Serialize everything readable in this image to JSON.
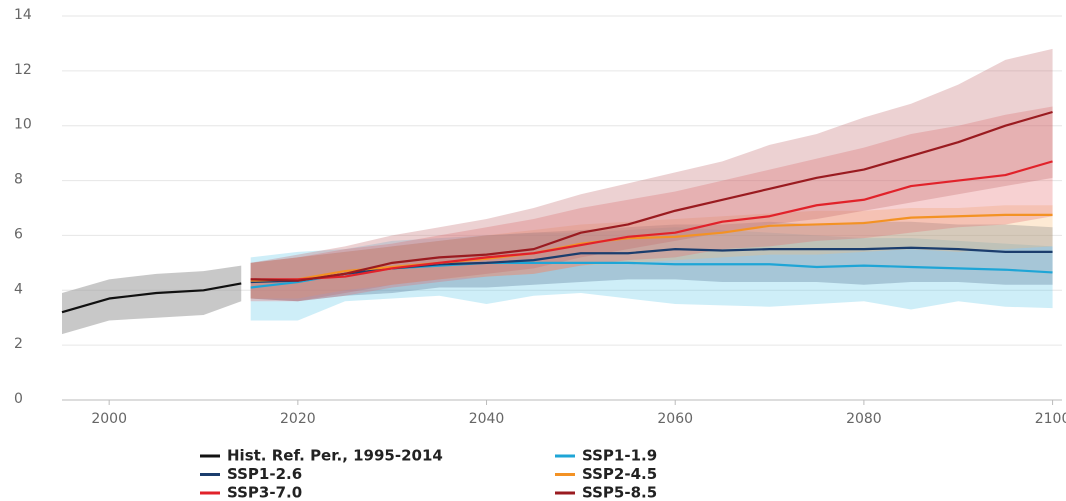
{
  "chart_data": {
    "type": "line",
    "xlim": [
      1995,
      2101
    ],
    "xticks": [
      2000,
      2020,
      2040,
      2060,
      2080,
      2100
    ],
    "ylim": [
      0,
      14
    ],
    "yticks": [
      0,
      2,
      4,
      6,
      8,
      10,
      12,
      14
    ],
    "grid": true,
    "series": [
      {
        "name": "Hist. Ref. Per., 1995-2014",
        "color": "#111111",
        "band_color": "#9a9a9a",
        "x": [
          1995,
          2000,
          2005,
          2010,
          2014
        ],
        "values": [
          3.2,
          3.7,
          3.9,
          4.0,
          4.25
        ],
        "lower": [
          2.4,
          2.9,
          3.0,
          3.1,
          3.6
        ],
        "upper": [
          3.9,
          4.4,
          4.6,
          4.7,
          4.9
        ]
      },
      {
        "name": "SSP1-1.9",
        "color": "#1ea5d6",
        "band_color": "#5cc6e8",
        "x": [
          2015,
          2020,
          2025,
          2030,
          2035,
          2040,
          2045,
          2050,
          2055,
          2060,
          2065,
          2070,
          2075,
          2080,
          2085,
          2090,
          2095,
          2100
        ],
        "values": [
          4.1,
          4.3,
          4.6,
          4.8,
          4.9,
          5.0,
          5.0,
          5.0,
          5.0,
          4.95,
          4.95,
          4.95,
          4.85,
          4.9,
          4.85,
          4.8,
          4.75,
          4.65
        ],
        "lower": [
          2.9,
          2.9,
          3.6,
          3.7,
          3.8,
          3.5,
          3.8,
          3.9,
          3.7,
          3.5,
          3.45,
          3.4,
          3.5,
          3.6,
          3.3,
          3.6,
          3.4,
          3.35
        ],
        "upper": [
          5.2,
          5.4,
          5.5,
          5.8,
          5.9,
          6.0,
          6.1,
          6.1,
          6.2,
          6.3,
          6.2,
          6.1,
          6.0,
          5.9,
          5.9,
          5.8,
          5.7,
          5.6
        ]
      },
      {
        "name": "SSP1-2.6",
        "color": "#1b3d6d",
        "band_color": "#4a6a8a",
        "x": [
          2015,
          2020,
          2025,
          2030,
          2035,
          2040,
          2045,
          2050,
          2055,
          2060,
          2065,
          2070,
          2075,
          2080,
          2085,
          2090,
          2095,
          2100
        ],
        "values": [
          4.3,
          4.35,
          4.6,
          4.8,
          4.95,
          5.0,
          5.1,
          5.35,
          5.35,
          5.5,
          5.45,
          5.5,
          5.5,
          5.5,
          5.55,
          5.5,
          5.4,
          5.4
        ],
        "lower": [
          3.7,
          3.6,
          3.8,
          3.9,
          4.1,
          4.1,
          4.2,
          4.3,
          4.4,
          4.4,
          4.3,
          4.3,
          4.3,
          4.2,
          4.3,
          4.3,
          4.2,
          4.2
        ],
        "upper": [
          5.0,
          5.2,
          5.4,
          5.6,
          5.8,
          6.0,
          6.1,
          6.2,
          6.3,
          6.4,
          6.4,
          6.5,
          6.4,
          6.5,
          6.5,
          6.4,
          6.4,
          6.3
        ]
      },
      {
        "name": "SSP2-4.5",
        "color": "#f39224",
        "band_color": "#f9b872",
        "x": [
          2015,
          2020,
          2025,
          2030,
          2035,
          2040,
          2045,
          2050,
          2055,
          2060,
          2065,
          2070,
          2075,
          2080,
          2085,
          2090,
          2095,
          2100
        ],
        "values": [
          4.35,
          4.4,
          4.7,
          4.85,
          5.0,
          5.15,
          5.35,
          5.7,
          5.9,
          5.95,
          6.1,
          6.35,
          6.4,
          6.45,
          6.65,
          6.7,
          6.75,
          6.75
        ],
        "lower": [
          3.7,
          3.7,
          4.0,
          4.2,
          4.4,
          4.5,
          4.6,
          4.9,
          5.0,
          5.1,
          5.2,
          5.3,
          5.3,
          5.4,
          5.5,
          5.4,
          5.5,
          5.6
        ],
        "upper": [
          5.0,
          5.2,
          5.4,
          5.6,
          5.8,
          6.0,
          6.2,
          6.4,
          6.5,
          6.6,
          6.7,
          6.8,
          6.9,
          6.9,
          7.0,
          7.0,
          7.1,
          7.1
        ]
      },
      {
        "name": "SSP3-7.0",
        "color": "#e1222a",
        "band_color": "#e5666a",
        "x": [
          2015,
          2020,
          2025,
          2030,
          2035,
          2040,
          2045,
          2050,
          2055,
          2060,
          2065,
          2070,
          2075,
          2080,
          2085,
          2090,
          2095,
          2100
        ],
        "values": [
          4.4,
          4.4,
          4.5,
          4.8,
          5.0,
          5.2,
          5.35,
          5.65,
          5.95,
          6.1,
          6.5,
          6.7,
          7.1,
          7.3,
          7.8,
          8.0,
          8.2,
          8.7
        ],
        "lower": [
          3.6,
          3.6,
          3.8,
          4.1,
          4.3,
          4.5,
          4.6,
          4.9,
          5.1,
          5.2,
          5.5,
          5.6,
          5.8,
          5.9,
          6.1,
          6.3,
          6.4,
          6.7
        ],
        "upper": [
          5.0,
          5.2,
          5.5,
          5.7,
          6.0,
          6.3,
          6.6,
          7.0,
          7.3,
          7.6,
          8.0,
          8.4,
          8.8,
          9.2,
          9.7,
          10.0,
          10.4,
          10.7
        ]
      },
      {
        "name": "SSP5-8.5",
        "color": "#9a1b20",
        "band_color": "#c0666a",
        "x": [
          2015,
          2020,
          2025,
          2030,
          2035,
          2040,
          2045,
          2050,
          2055,
          2060,
          2065,
          2070,
          2075,
          2080,
          2085,
          2090,
          2095,
          2100
        ],
        "values": [
          4.4,
          4.35,
          4.6,
          5.0,
          5.2,
          5.3,
          5.5,
          6.1,
          6.4,
          6.9,
          7.3,
          7.7,
          8.1,
          8.4,
          8.9,
          9.4,
          10.0,
          10.5
        ],
        "lower": [
          3.7,
          3.6,
          3.9,
          4.2,
          4.4,
          4.6,
          4.8,
          5.2,
          5.5,
          5.8,
          6.1,
          6.4,
          6.6,
          6.9,
          7.2,
          7.5,
          7.8,
          8.1
        ],
        "upper": [
          5.0,
          5.3,
          5.6,
          6.0,
          6.3,
          6.6,
          7.0,
          7.5,
          7.9,
          8.3,
          8.7,
          9.3,
          9.7,
          10.3,
          10.8,
          11.5,
          12.4,
          12.8
        ]
      }
    ]
  }
}
